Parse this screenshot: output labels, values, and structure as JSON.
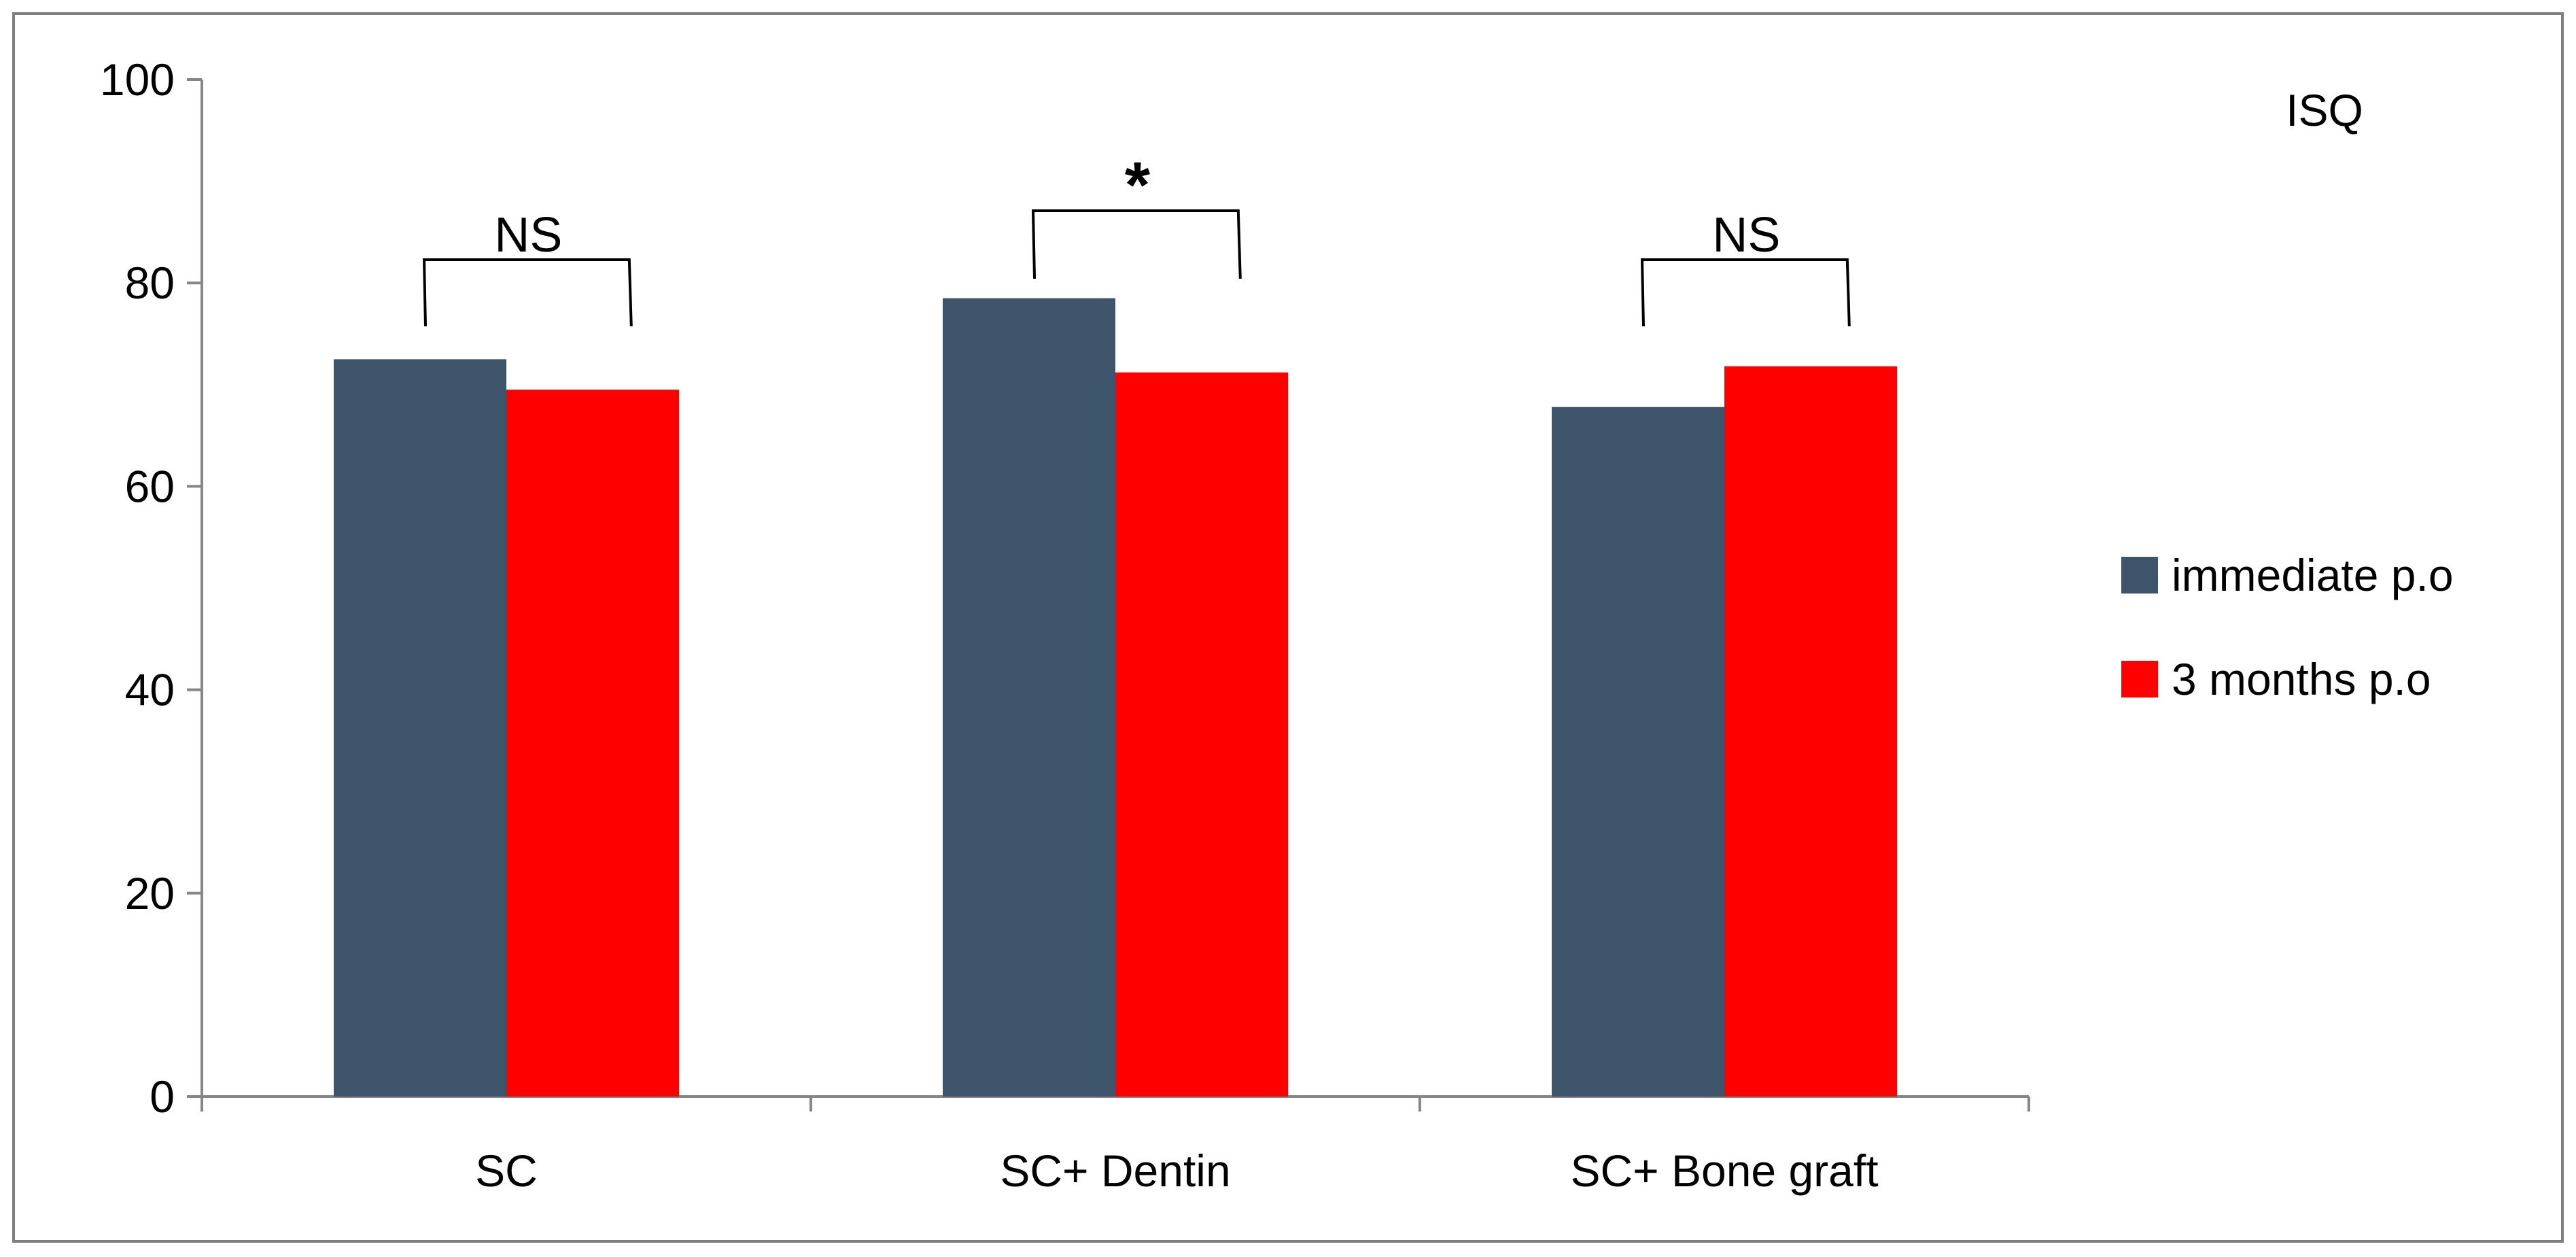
{
  "chart_data": {
    "type": "bar",
    "title": "ISQ",
    "xlabel": "",
    "ylabel": "",
    "categories": [
      "SC",
      "SC+ Dentin",
      "SC+ Bone graft"
    ],
    "series": [
      {
        "name": "immediate p.o",
        "values": [
          72.5,
          78.5,
          67.8
        ],
        "color": "#3D546B"
      },
      {
        "name": "3 months p.o",
        "values": [
          69.5,
          71.2,
          71.8
        ],
        "color": "#FF0000"
      }
    ],
    "ylim": [
      0,
      100
    ],
    "yticks": [
      0,
      20,
      40,
      60,
      80,
      100
    ],
    "grid": false,
    "legend_position": "right",
    "significance": [
      "NS",
      "*",
      "NS"
    ]
  }
}
